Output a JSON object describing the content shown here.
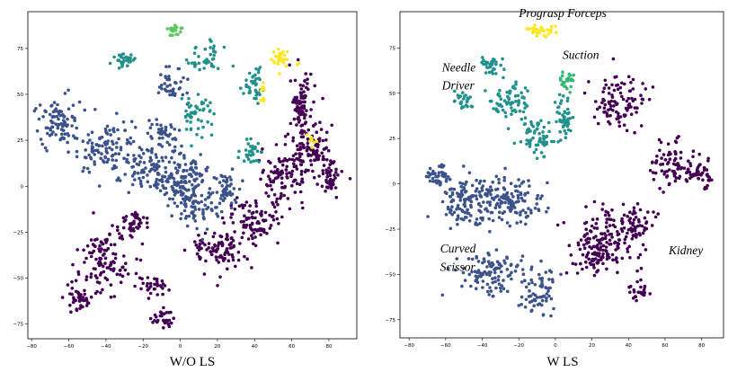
{
  "figure": {
    "left_caption": "W/O LS",
    "right_caption": "W LS"
  },
  "chart_data": [
    {
      "type": "scatter",
      "title": "",
      "caption": "W/O LS",
      "xlabel": "",
      "ylabel": "",
      "xlim": [
        -82,
        95
      ],
      "ylim": [
        -83,
        95
      ],
      "grid": false,
      "x_ticks": [
        -80,
        -60,
        -40,
        -20,
        0,
        20,
        40,
        60,
        80
      ],
      "y_ticks": [
        -75,
        -50,
        -25,
        0,
        25,
        50,
        75
      ],
      "x_tick_labels": [
        "−80",
        "−60",
        "−40",
        "−20",
        "0",
        "20",
        "40",
        "60",
        "80"
      ],
      "y_tick_labels": [
        "−75",
        "−50",
        "−25",
        "0",
        "25",
        "50",
        "75"
      ],
      "series": [
        {
          "name": "Kidney",
          "color": "#440154",
          "clusters": [
            [
              65,
              45,
              5,
              12,
              90
            ],
            [
              70,
              20,
              10,
              12,
              110
            ],
            [
              55,
              5,
              10,
              12,
              100
            ],
            [
              80,
              5,
              6,
              8,
              50
            ],
            [
              40,
              -20,
              12,
              10,
              90
            ],
            [
              20,
              -35,
              12,
              10,
              90
            ],
            [
              -40,
              -40,
              12,
              15,
              110
            ],
            [
              -55,
              -60,
              6,
              6,
              40
            ],
            [
              -25,
              -20,
              6,
              6,
              40
            ],
            [
              -15,
              -55,
              6,
              5,
              30
            ],
            [
              -10,
              -72,
              5,
              5,
              30
            ]
          ]
        },
        {
          "name": "Curved Scissor",
          "color": "#3b528b",
          "clusters": [
            [
              -65,
              35,
              10,
              10,
              90
            ],
            [
              -40,
              20,
              15,
              12,
              110
            ],
            [
              -20,
              10,
              8,
              10,
              60
            ],
            [
              0,
              5,
              12,
              12,
              150
            ],
            [
              10,
              -10,
              10,
              10,
              80
            ],
            [
              -10,
              30,
              6,
              6,
              40
            ],
            [
              25,
              0,
              6,
              8,
              40
            ],
            [
              -5,
              55,
              8,
              8,
              40
            ]
          ]
        },
        {
          "name": "Needle Driver",
          "color": "#21918c",
          "clusters": [
            [
              -30,
              68,
              5,
              3,
              30
            ],
            [
              40,
              55,
              6,
              8,
              40
            ],
            [
              38,
              18,
              6,
              6,
              30
            ],
            [
              10,
              40,
              8,
              10,
              50
            ],
            [
              15,
              70,
              8,
              6,
              40
            ]
          ]
        },
        {
          "name": "Prograsp Forceps",
          "color": "#5ec962",
          "clusters": [
            [
              -3,
              85,
              3,
              3,
              20
            ]
          ]
        },
        {
          "name": "Suction",
          "color": "#fde725",
          "clusters": [
            [
              55,
              70,
              5,
              5,
              30
            ],
            [
              45,
              50,
              2,
              5,
              10
            ],
            [
              70,
              25,
              3,
              3,
              8
            ]
          ]
        }
      ]
    },
    {
      "type": "scatter",
      "title": "",
      "caption": "W LS",
      "xlabel": "",
      "ylabel": "",
      "xlim": [
        -85,
        92
      ],
      "ylim": [
        -85,
        95
      ],
      "grid": false,
      "x_ticks": [
        -80,
        -60,
        -40,
        -20,
        0,
        20,
        40,
        60,
        80
      ],
      "y_ticks": [
        -75,
        -50,
        -25,
        0,
        25,
        50,
        75
      ],
      "x_tick_labels": [
        "−80",
        "−60",
        "−40",
        "−20",
        "0",
        "20",
        "40",
        "60",
        "80"
      ],
      "y_tick_labels": [
        "−75",
        "−50",
        "−25",
        "0",
        "25",
        "50",
        "75"
      ],
      "annotations": [
        {
          "text": "Prograsp Forceps",
          "x": -20,
          "y": 92
        },
        {
          "text": "Suction",
          "x": 4,
          "y": 69
        },
        {
          "text": "Needle",
          "x": -62,
          "y": 62
        },
        {
          "text": "Driver",
          "x": -62,
          "y": 52
        },
        {
          "text": "Curved",
          "x": -63,
          "y": -38
        },
        {
          "text": "Scissor",
          "x": -63,
          "y": -48
        },
        {
          "text": "Kidney",
          "x": 62,
          "y": -39
        }
      ],
      "series": [
        {
          "name": "Kidney",
          "color": "#440154",
          "clusters": [
            [
              35,
              45,
              12,
              12,
              100
            ],
            [
              65,
              10,
              10,
              10,
              80
            ],
            [
              80,
              5,
              5,
              6,
              40
            ],
            [
              30,
              -30,
              15,
              15,
              130
            ],
            [
              20,
              -40,
              10,
              8,
              60
            ],
            [
              45,
              -60,
              5,
              4,
              25
            ],
            [
              45,
              -20,
              8,
              8,
              40
            ]
          ]
        },
        {
          "name": "Curved Scissor",
          "color": "#3b528b",
          "clusters": [
            [
              -50,
              -10,
              12,
              12,
              130
            ],
            [
              -25,
              -10,
              15,
              12,
              130
            ],
            [
              -35,
              -50,
              15,
              10,
              110
            ],
            [
              -10,
              -60,
              8,
              12,
              60
            ],
            [
              -65,
              5,
              6,
              6,
              40
            ]
          ]
        },
        {
          "name": "Needle Driver",
          "color": "#21918c",
          "clusters": [
            [
              -35,
              65,
              5,
              4,
              30
            ],
            [
              -50,
              45,
              4,
              5,
              25
            ],
            [
              -25,
              45,
              10,
              8,
              70
            ],
            [
              -10,
              25,
              8,
              8,
              60
            ],
            [
              5,
              35,
              4,
              10,
              50
            ]
          ]
        },
        {
          "name": "Prograsp Forceps",
          "color": "#fde725",
          "clusters": [
            [
              -7,
              85,
              5,
              3,
              30
            ]
          ]
        },
        {
          "name": "Suction",
          "color": "#35b779",
          "clusters": [
            [
              6,
              57,
              3,
              4,
              25
            ]
          ]
        }
      ]
    }
  ]
}
